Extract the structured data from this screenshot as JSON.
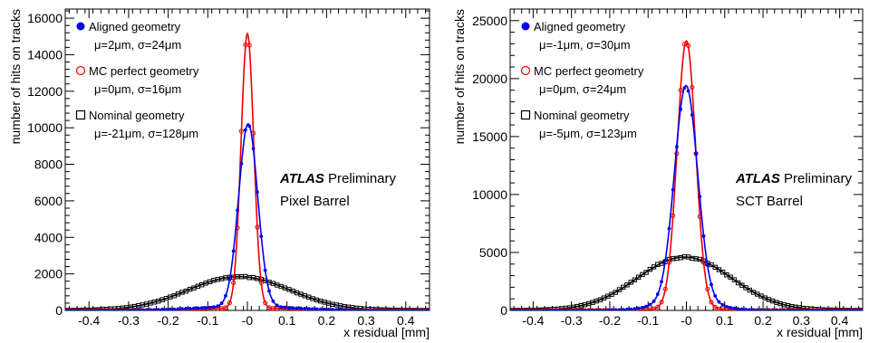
{
  "chart_data": [
    {
      "type": "line",
      "xlabel": "x residual [mm]",
      "ylabel": "number of hits on tracks",
      "xlim": [
        -0.46,
        0.46
      ],
      "ylim": [
        0,
        16500
      ],
      "x_ticks": [
        -0.4,
        -0.3,
        -0.2,
        -0.1,
        0,
        0.1,
        0.2,
        0.3,
        0.4
      ],
      "x_tick_labels": [
        "-0.4",
        "-0.3",
        "-0.2",
        "-0.1",
        "-0",
        "0.1",
        "0.2",
        "0.3",
        "0.4"
      ],
      "y_ticks": [
        0,
        2000,
        4000,
        6000,
        8000,
        10000,
        12000,
        14000,
        16000
      ],
      "y_tick_labels": [
        "0",
        "2000",
        "4000",
        "6000",
        "8000",
        "10000",
        "12000",
        "14000",
        "16000"
      ],
      "experiment_label": "ATLAS",
      "status_label": "Preliminary",
      "subtitle": "Pixel Barrel",
      "legend_position": "top-left",
      "series": [
        {
          "name": "Aligned geometry",
          "params": "μ=2μm, σ=24μm",
          "color": "#0000ee",
          "marker": "filled-circle",
          "peak": 10000,
          "mean_mm": 0.002,
          "sigma_mm": 0.024,
          "tail_amplitude": 220,
          "tail_sigma_mm": 0.12
        },
        {
          "name": "MC perfect geometry",
          "params": "μ=0μm, σ=16μm",
          "color": "#ee0000",
          "marker": "open-circle",
          "peak": 15000,
          "mean_mm": 0.0,
          "sigma_mm": 0.016,
          "tail_amplitude": 150,
          "tail_sigma_mm": 0.08
        },
        {
          "name": "Nominal geometry",
          "params": "μ=-21μm, σ=128μm",
          "color": "#000000",
          "marker": "open-square",
          "peak": 1850,
          "mean_mm": -0.021,
          "sigma_mm": 0.128,
          "tail_amplitude": 0,
          "tail_sigma_mm": 0.1
        }
      ]
    },
    {
      "type": "line",
      "xlabel": "x residual [mm]",
      "ylabel": "number of hits on tracks",
      "xlim": [
        -0.46,
        0.46
      ],
      "ylim": [
        0,
        26000
      ],
      "x_ticks": [
        -0.4,
        -0.3,
        -0.2,
        -0.1,
        0,
        0.1,
        0.2,
        0.3,
        0.4
      ],
      "x_tick_labels": [
        "-0.4",
        "-0.3",
        "-0.2",
        "-0.1",
        "-0",
        "0.1",
        "0.2",
        "0.3",
        "0.4"
      ],
      "y_ticks": [
        0,
        5000,
        10000,
        15000,
        20000,
        25000
      ],
      "y_tick_labels": [
        "0",
        "5000",
        "10000",
        "15000",
        "20000",
        "25000"
      ],
      "experiment_label": "ATLAS",
      "status_label": "Preliminary",
      "subtitle": "SCT Barrel",
      "legend_position": "top-left",
      "series": [
        {
          "name": "Aligned geometry",
          "params": "μ=-1μm, σ=30μm",
          "color": "#0000ee",
          "marker": "filled-circle",
          "peak": 18500,
          "mean_mm": -0.001,
          "sigma_mm": 0.03,
          "tail_amplitude": 900,
          "tail_sigma_mm": 0.07
        },
        {
          "name": "MC perfect geometry",
          "params": "μ=0μm, σ=24μm",
          "color": "#ee0000",
          "marker": "open-circle",
          "peak": 23000,
          "mean_mm": 0.0,
          "sigma_mm": 0.024,
          "tail_amplitude": 250,
          "tail_sigma_mm": 0.06
        },
        {
          "name": "Nominal geometry",
          "params": "μ=-5μm, σ=123μm",
          "color": "#000000",
          "marker": "open-square",
          "peak": 4600,
          "mean_mm": -0.005,
          "sigma_mm": 0.123,
          "tail_amplitude": 0,
          "tail_sigma_mm": 0.1
        }
      ]
    }
  ]
}
